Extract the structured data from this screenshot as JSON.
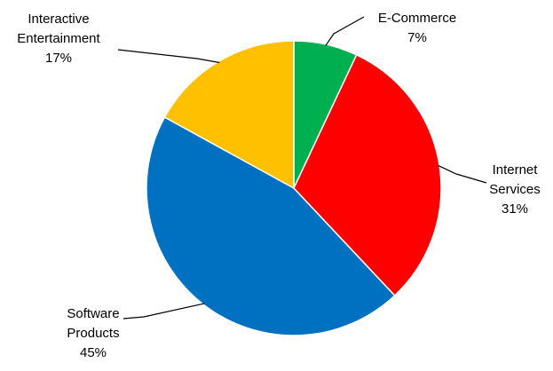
{
  "chart_data": {
    "type": "pie",
    "start_angle_deg": 0,
    "direction": "clockwise",
    "slices": [
      {
        "name": "E-Commerce",
        "label_lines": [
          "E-Commerce",
          "7%"
        ],
        "value": 7,
        "color": "#00B050"
      },
      {
        "name": "Internet Services",
        "label_lines": [
          "Internet",
          "Services",
          "31%"
        ],
        "value": 31,
        "color": "#FF0000"
      },
      {
        "name": "Software Products",
        "label_lines": [
          "Software",
          "Products",
          "45%"
        ],
        "value": 45,
        "color": "#0070C0"
      },
      {
        "name": "Interactive Entertainment",
        "label_lines": [
          "Interactive",
          "Entertainment",
          "17%"
        ],
        "value": 17,
        "color": "#FFC000"
      }
    ]
  }
}
